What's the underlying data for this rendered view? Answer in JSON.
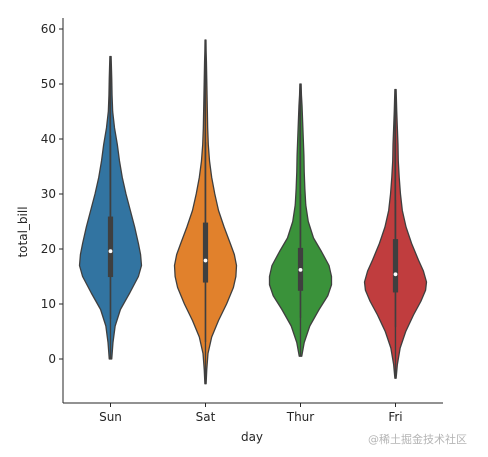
{
  "chart_data": {
    "type": "violin",
    "xlabel": "day",
    "ylabel": "total_bill",
    "ylim": [
      -8,
      62
    ],
    "yticks": [
      0,
      10,
      20,
      30,
      40,
      50,
      60
    ],
    "grid": false,
    "categories": [
      "Sun",
      "Sat",
      "Thur",
      "Fri"
    ],
    "series": [
      {
        "category": "Sun",
        "color": "#3274a1",
        "kde_extent": [
          0,
          55
        ],
        "median": 19.6,
        "q1": 14.9,
        "q3": 25.9,
        "whisker_low": 7.3,
        "whisker_high": 40.6,
        "density": [
          [
            0,
            0.04
          ],
          [
            3,
            0.08
          ],
          [
            6,
            0.15
          ],
          [
            9,
            0.32
          ],
          [
            12,
            0.62
          ],
          [
            15,
            0.9
          ],
          [
            17,
            1.0
          ],
          [
            19,
            0.97
          ],
          [
            21,
            0.9
          ],
          [
            24,
            0.78
          ],
          [
            27,
            0.64
          ],
          [
            30,
            0.5
          ],
          [
            33,
            0.38
          ],
          [
            36,
            0.29
          ],
          [
            39,
            0.22
          ],
          [
            42,
            0.13
          ],
          [
            45,
            0.07
          ],
          [
            48,
            0.05
          ],
          [
            51,
            0.04
          ],
          [
            53,
            0.03
          ],
          [
            55,
            0.02
          ]
        ]
      },
      {
        "category": "Sat",
        "color": "#e1812c",
        "kde_extent": [
          -4.5,
          58
        ],
        "median": 17.9,
        "q1": 13.9,
        "q3": 24.8,
        "whisker_low": 3.1,
        "whisker_high": 39.4,
        "density": [
          [
            -4.5,
            0.02
          ],
          [
            -2,
            0.04
          ],
          [
            1,
            0.08
          ],
          [
            4,
            0.2
          ],
          [
            7,
            0.42
          ],
          [
            10,
            0.68
          ],
          [
            13,
            0.9
          ],
          [
            15,
            0.98
          ],
          [
            17,
            1.0
          ],
          [
            19,
            0.93
          ],
          [
            21,
            0.8
          ],
          [
            24,
            0.6
          ],
          [
            27,
            0.42
          ],
          [
            30,
            0.3
          ],
          [
            33,
            0.2
          ],
          [
            36,
            0.13
          ],
          [
            39,
            0.09
          ],
          [
            42,
            0.07
          ],
          [
            45,
            0.06
          ],
          [
            48,
            0.05
          ],
          [
            51,
            0.04
          ],
          [
            54,
            0.03
          ],
          [
            56,
            0.02
          ],
          [
            58,
            0.015
          ]
        ]
      },
      {
        "category": "Thur",
        "color": "#3a923a",
        "kde_extent": [
          0.5,
          50
        ],
        "median": 16.2,
        "q1": 12.4,
        "q3": 20.2,
        "whisker_low": 7.5,
        "whisker_high": 30.0,
        "density": [
          [
            0.5,
            0.04
          ],
          [
            3,
            0.12
          ],
          [
            6,
            0.3
          ],
          [
            9,
            0.6
          ],
          [
            11.5,
            0.88
          ],
          [
            13.5,
            1.0
          ],
          [
            15,
            1.0
          ],
          [
            17,
            0.92
          ],
          [
            19.5,
            0.68
          ],
          [
            22,
            0.42
          ],
          [
            25,
            0.25
          ],
          [
            28,
            0.17
          ],
          [
            31,
            0.14
          ],
          [
            34,
            0.12
          ],
          [
            37,
            0.11
          ],
          [
            40,
            0.09
          ],
          [
            43,
            0.07
          ],
          [
            46,
            0.05
          ],
          [
            48,
            0.03
          ],
          [
            50,
            0.02
          ]
        ]
      },
      {
        "category": "Fri",
        "color": "#c03d3e",
        "kde_extent": [
          -3.5,
          49
        ],
        "median": 15.4,
        "q1": 12.1,
        "q3": 21.8,
        "whisker_low": 5.8,
        "whisker_high": 28.9,
        "density": [
          [
            -3.5,
            0.02
          ],
          [
            -1,
            0.06
          ],
          [
            2,
            0.15
          ],
          [
            5,
            0.33
          ],
          [
            8,
            0.58
          ],
          [
            10.5,
            0.82
          ],
          [
            12.5,
            0.97
          ],
          [
            14,
            1.0
          ],
          [
            16,
            0.9
          ],
          [
            18,
            0.74
          ],
          [
            21,
            0.52
          ],
          [
            24,
            0.34
          ],
          [
            27,
            0.22
          ],
          [
            30,
            0.16
          ],
          [
            33,
            0.12
          ],
          [
            36,
            0.09
          ],
          [
            39,
            0.08
          ],
          [
            42,
            0.06
          ],
          [
            45,
            0.04
          ],
          [
            47,
            0.03
          ],
          [
            49,
            0.02
          ]
        ]
      }
    ]
  },
  "watermark": "@稀土掘金技术社区"
}
